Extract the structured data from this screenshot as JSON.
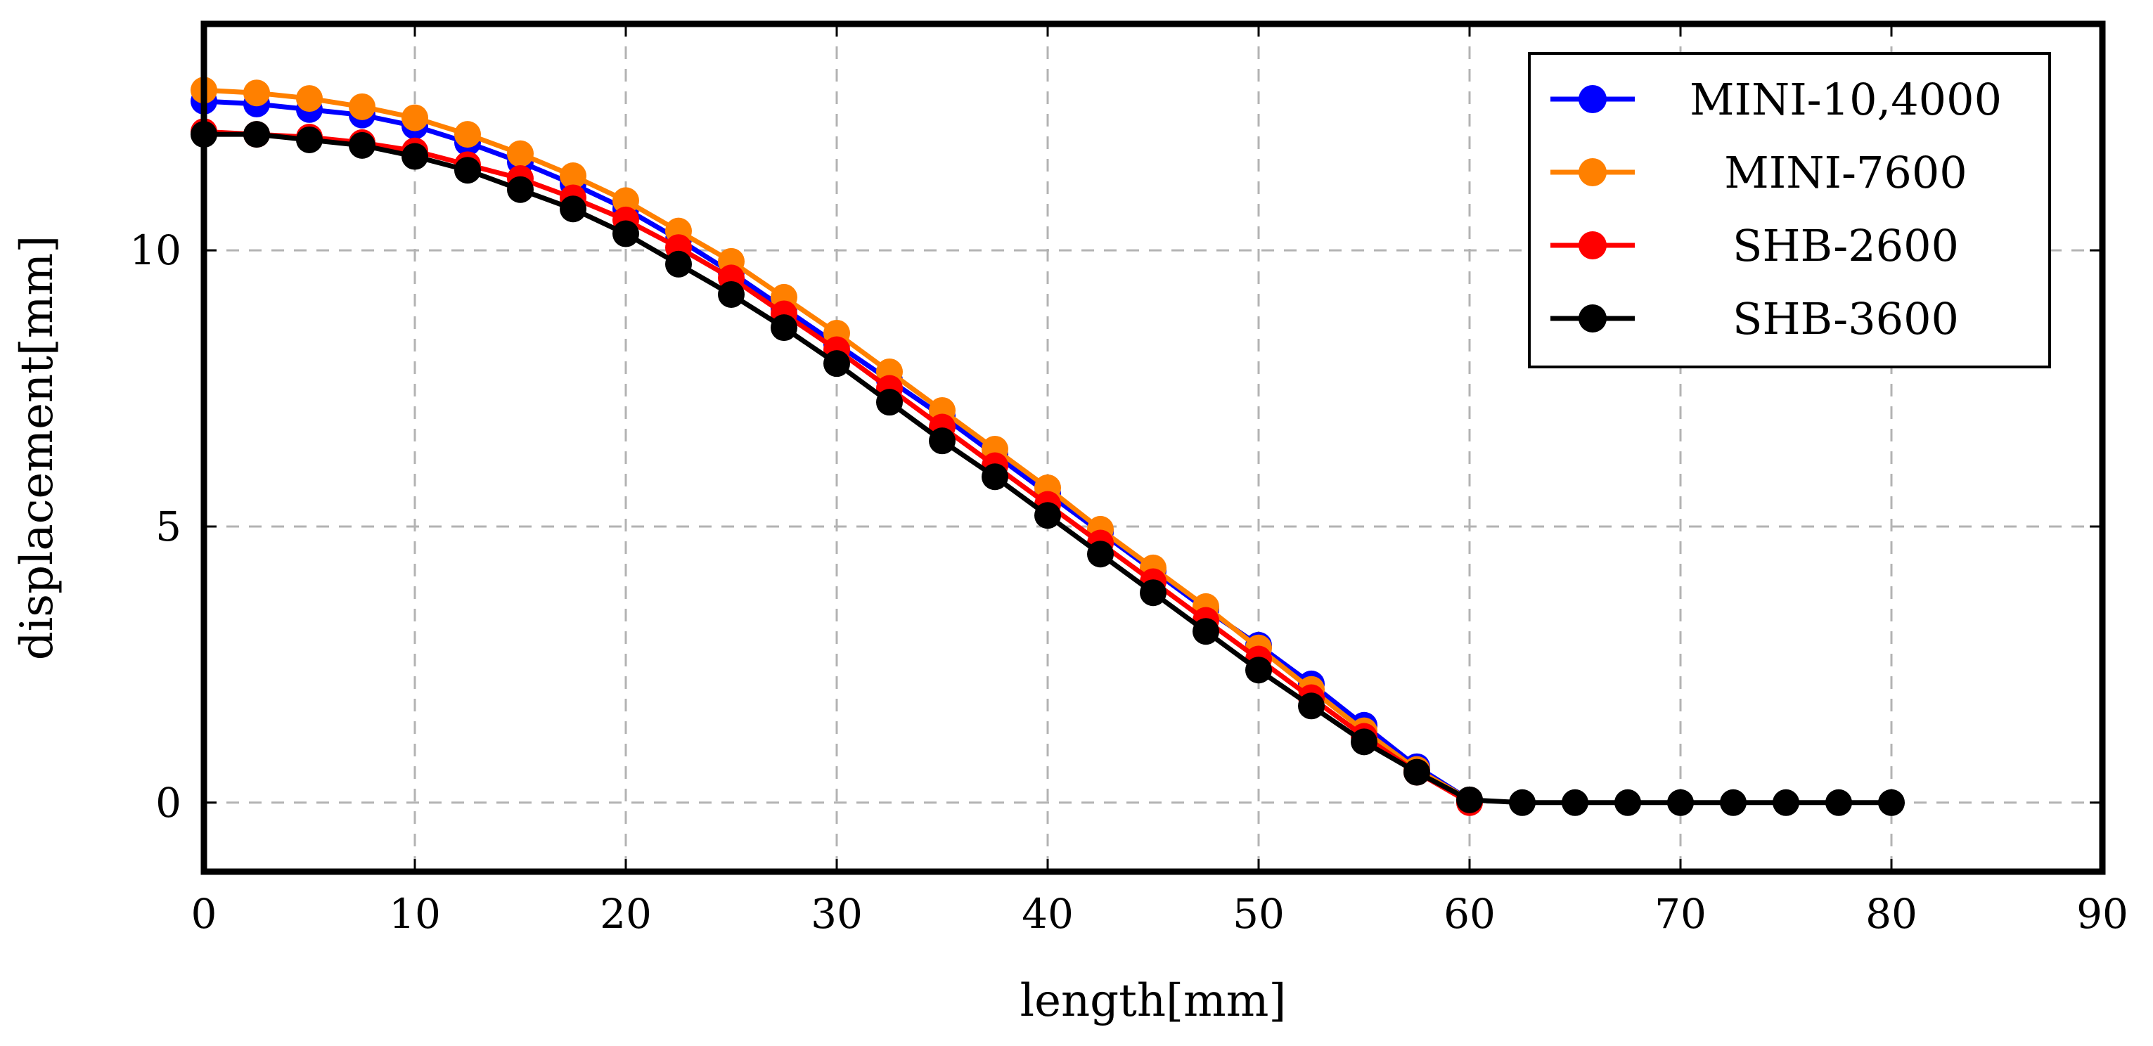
{
  "chart_data": {
    "type": "line",
    "title": "",
    "xlabel": "length[mm]",
    "ylabel": "displacement[mm]",
    "xlim": [
      0,
      90
    ],
    "ylim": [
      -1.25,
      14.1
    ],
    "xticks": [
      0,
      10,
      20,
      30,
      40,
      50,
      60,
      70,
      80,
      90
    ],
    "yticks": [
      0,
      5,
      10
    ],
    "grid": true,
    "legend_position": "top-right",
    "series": [
      {
        "name": "MINI-10,4000",
        "color": "#0000ff",
        "x": [
          0,
          2.5,
          5,
          7.5,
          10,
          12.5,
          15,
          17.5,
          20,
          22.5,
          25,
          27.5,
          30,
          32.5,
          35,
          37.5,
          40,
          42.5,
          45,
          47.5,
          50,
          52.5,
          55,
          57.5,
          60
        ],
        "y": [
          12.7,
          12.65,
          12.55,
          12.45,
          12.25,
          11.95,
          11.6,
          11.2,
          10.75,
          10.2,
          9.6,
          8.95,
          8.3,
          7.65,
          7.0,
          6.3,
          5.6,
          4.9,
          4.2,
          3.5,
          2.85,
          2.15,
          1.4,
          0.65,
          0.05
        ]
      },
      {
        "name": "MINI-7600",
        "color": "#ff8000",
        "x": [
          0,
          2.5,
          5,
          7.5,
          10,
          12.5,
          15,
          17.5,
          20,
          22.5,
          25,
          27.5,
          30,
          32.5,
          35,
          37.5,
          40,
          42.5,
          45,
          47.5,
          50,
          52.5,
          55,
          57.5,
          60
        ],
        "y": [
          12.9,
          12.85,
          12.75,
          12.6,
          12.4,
          12.1,
          11.75,
          11.35,
          10.9,
          10.35,
          9.8,
          9.15,
          8.5,
          7.8,
          7.1,
          6.4,
          5.7,
          4.95,
          4.25,
          3.55,
          2.8,
          2.05,
          1.3,
          0.6,
          0.05
        ]
      },
      {
        "name": "SHB-2600",
        "color": "#ff0000",
        "x": [
          0,
          2.5,
          5,
          7.5,
          10,
          12.5,
          15,
          17.5,
          20,
          22.5,
          25,
          27.5,
          30,
          32.5,
          35,
          37.5,
          40,
          42.5,
          45,
          47.5,
          50,
          52.5,
          55,
          57.5,
          60
        ],
        "y": [
          12.15,
          12.1,
          12.05,
          11.95,
          11.8,
          11.55,
          11.3,
          10.95,
          10.55,
          10.05,
          9.5,
          8.85,
          8.2,
          7.5,
          6.8,
          6.1,
          5.4,
          4.7,
          4.0,
          3.3,
          2.6,
          1.9,
          1.2,
          0.55,
          0.0
        ]
      },
      {
        "name": "SHB-3600",
        "color": "#000000",
        "x": [
          0,
          2.5,
          5,
          7.5,
          10,
          12.5,
          15,
          17.5,
          20,
          22.5,
          25,
          27.5,
          30,
          32.5,
          35,
          37.5,
          40,
          42.5,
          45,
          47.5,
          50,
          52.5,
          55,
          57.5,
          60,
          62.5,
          65,
          67.5,
          70,
          72.5,
          75,
          77.5,
          80
        ],
        "y": [
          12.1,
          12.1,
          12.0,
          11.9,
          11.7,
          11.45,
          11.1,
          10.75,
          10.3,
          9.75,
          9.2,
          8.6,
          7.95,
          7.25,
          6.55,
          5.9,
          5.2,
          4.5,
          3.8,
          3.1,
          2.4,
          1.75,
          1.1,
          0.55,
          0.05,
          0.0,
          0.0,
          0.0,
          0.0,
          0.0,
          0.0,
          0.0,
          0.0
        ]
      }
    ]
  }
}
